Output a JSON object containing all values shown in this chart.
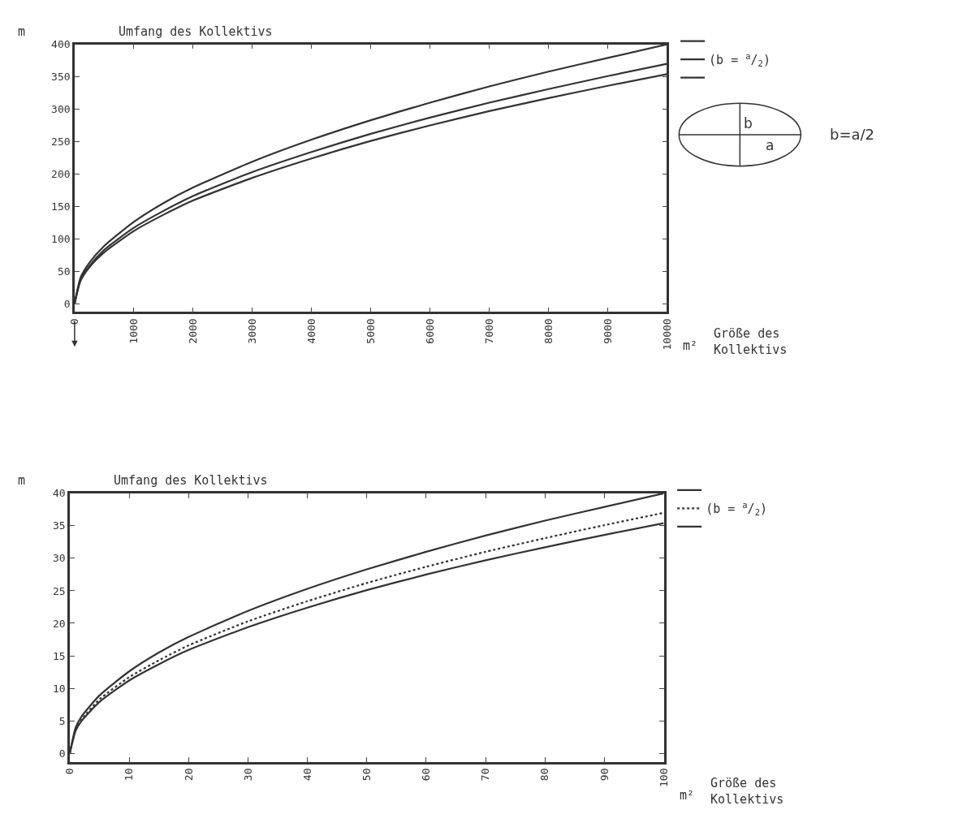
{
  "chart_data": [
    {
      "type": "line",
      "title": "Umfang des Kollektivs",
      "ylabel": "m",
      "xlabel": "Größe des Kollektivs",
      "annotations": [
        "m²",
        "b",
        "a",
        "b=a/2"
      ],
      "x": [
        0,
        100,
        250,
        500,
        1000,
        1500,
        2000,
        3000,
        4000,
        5000,
        6000,
        7000,
        8000,
        9000,
        10000
      ],
      "series": [
        {
          "color": "#333333",
          "values": [
            0,
            40,
            63,
            89,
            126,
            155,
            179,
            219,
            253,
            283,
            310,
            335,
            358,
            379,
            400
          ]
        },
        {
          "name": "(b = $^{a}$/$_{2}$)",
          "color": "#333333",
          "values": [
            0,
            37,
            58,
            83,
            117,
            143,
            166,
            203,
            234,
            262,
            287,
            310,
            331,
            351,
            370
          ]
        },
        {
          "color": "#333333",
          "values": [
            0,
            35,
            56,
            79,
            112,
            137,
            159,
            194,
            224,
            251,
            275,
            297,
            317,
            336,
            354
          ]
        }
      ],
      "xlim": [
        0,
        10000
      ],
      "ylim": [
        -13,
        400
      ],
      "xticks": [
        0,
        1000,
        2000,
        3000,
        4000,
        5000,
        6000,
        7000,
        8000,
        9000,
        10000
      ],
      "yticks": [
        0,
        50,
        100,
        150,
        200,
        250,
        300,
        350,
        400
      ],
      "legend": "top right"
    },
    {
      "type": "line",
      "title": "Umfang des Kollektivs",
      "ylabel": "m",
      "xlabel": "Größe des Kollektivs",
      "annotations": [
        "m²"
      ],
      "x": [
        0,
        1,
        2,
        5,
        10,
        15,
        20,
        30,
        40,
        50,
        60,
        70,
        80,
        90,
        100
      ],
      "series": [
        {
          "color": "#333333",
          "line_style": "solid",
          "values": [
            0,
            4,
            5.7,
            8.9,
            12.6,
            15.5,
            17.9,
            21.9,
            25.3,
            28.3,
            31,
            33.5,
            35.8,
            37.9,
            40
          ]
        },
        {
          "name": "(b = $^{a}$/$_{2}$)",
          "color": "#333333",
          "line_style": "dotted",
          "values": [
            0,
            3.7,
            5.2,
            8.3,
            11.7,
            14.3,
            16.6,
            20.3,
            23.4,
            26.2,
            28.7,
            31,
            33.1,
            35.1,
            37
          ]
        },
        {
          "color": "#333333",
          "line_style": "solid",
          "values": [
            0,
            3.5,
            5,
            7.9,
            11.2,
            13.7,
            15.9,
            19.4,
            22.4,
            25.1,
            27.5,
            29.7,
            31.7,
            33.6,
            35.4
          ]
        }
      ],
      "xlim": [
        0,
        100
      ],
      "ylim": [
        -1.3,
        40
      ],
      "xticks": [
        0,
        10,
        20,
        30,
        40,
        50,
        60,
        70,
        80,
        90,
        100
      ],
      "yticks": [
        0,
        5,
        10,
        15,
        20,
        25,
        30,
        35,
        40
      ],
      "legend": "top right"
    }
  ]
}
